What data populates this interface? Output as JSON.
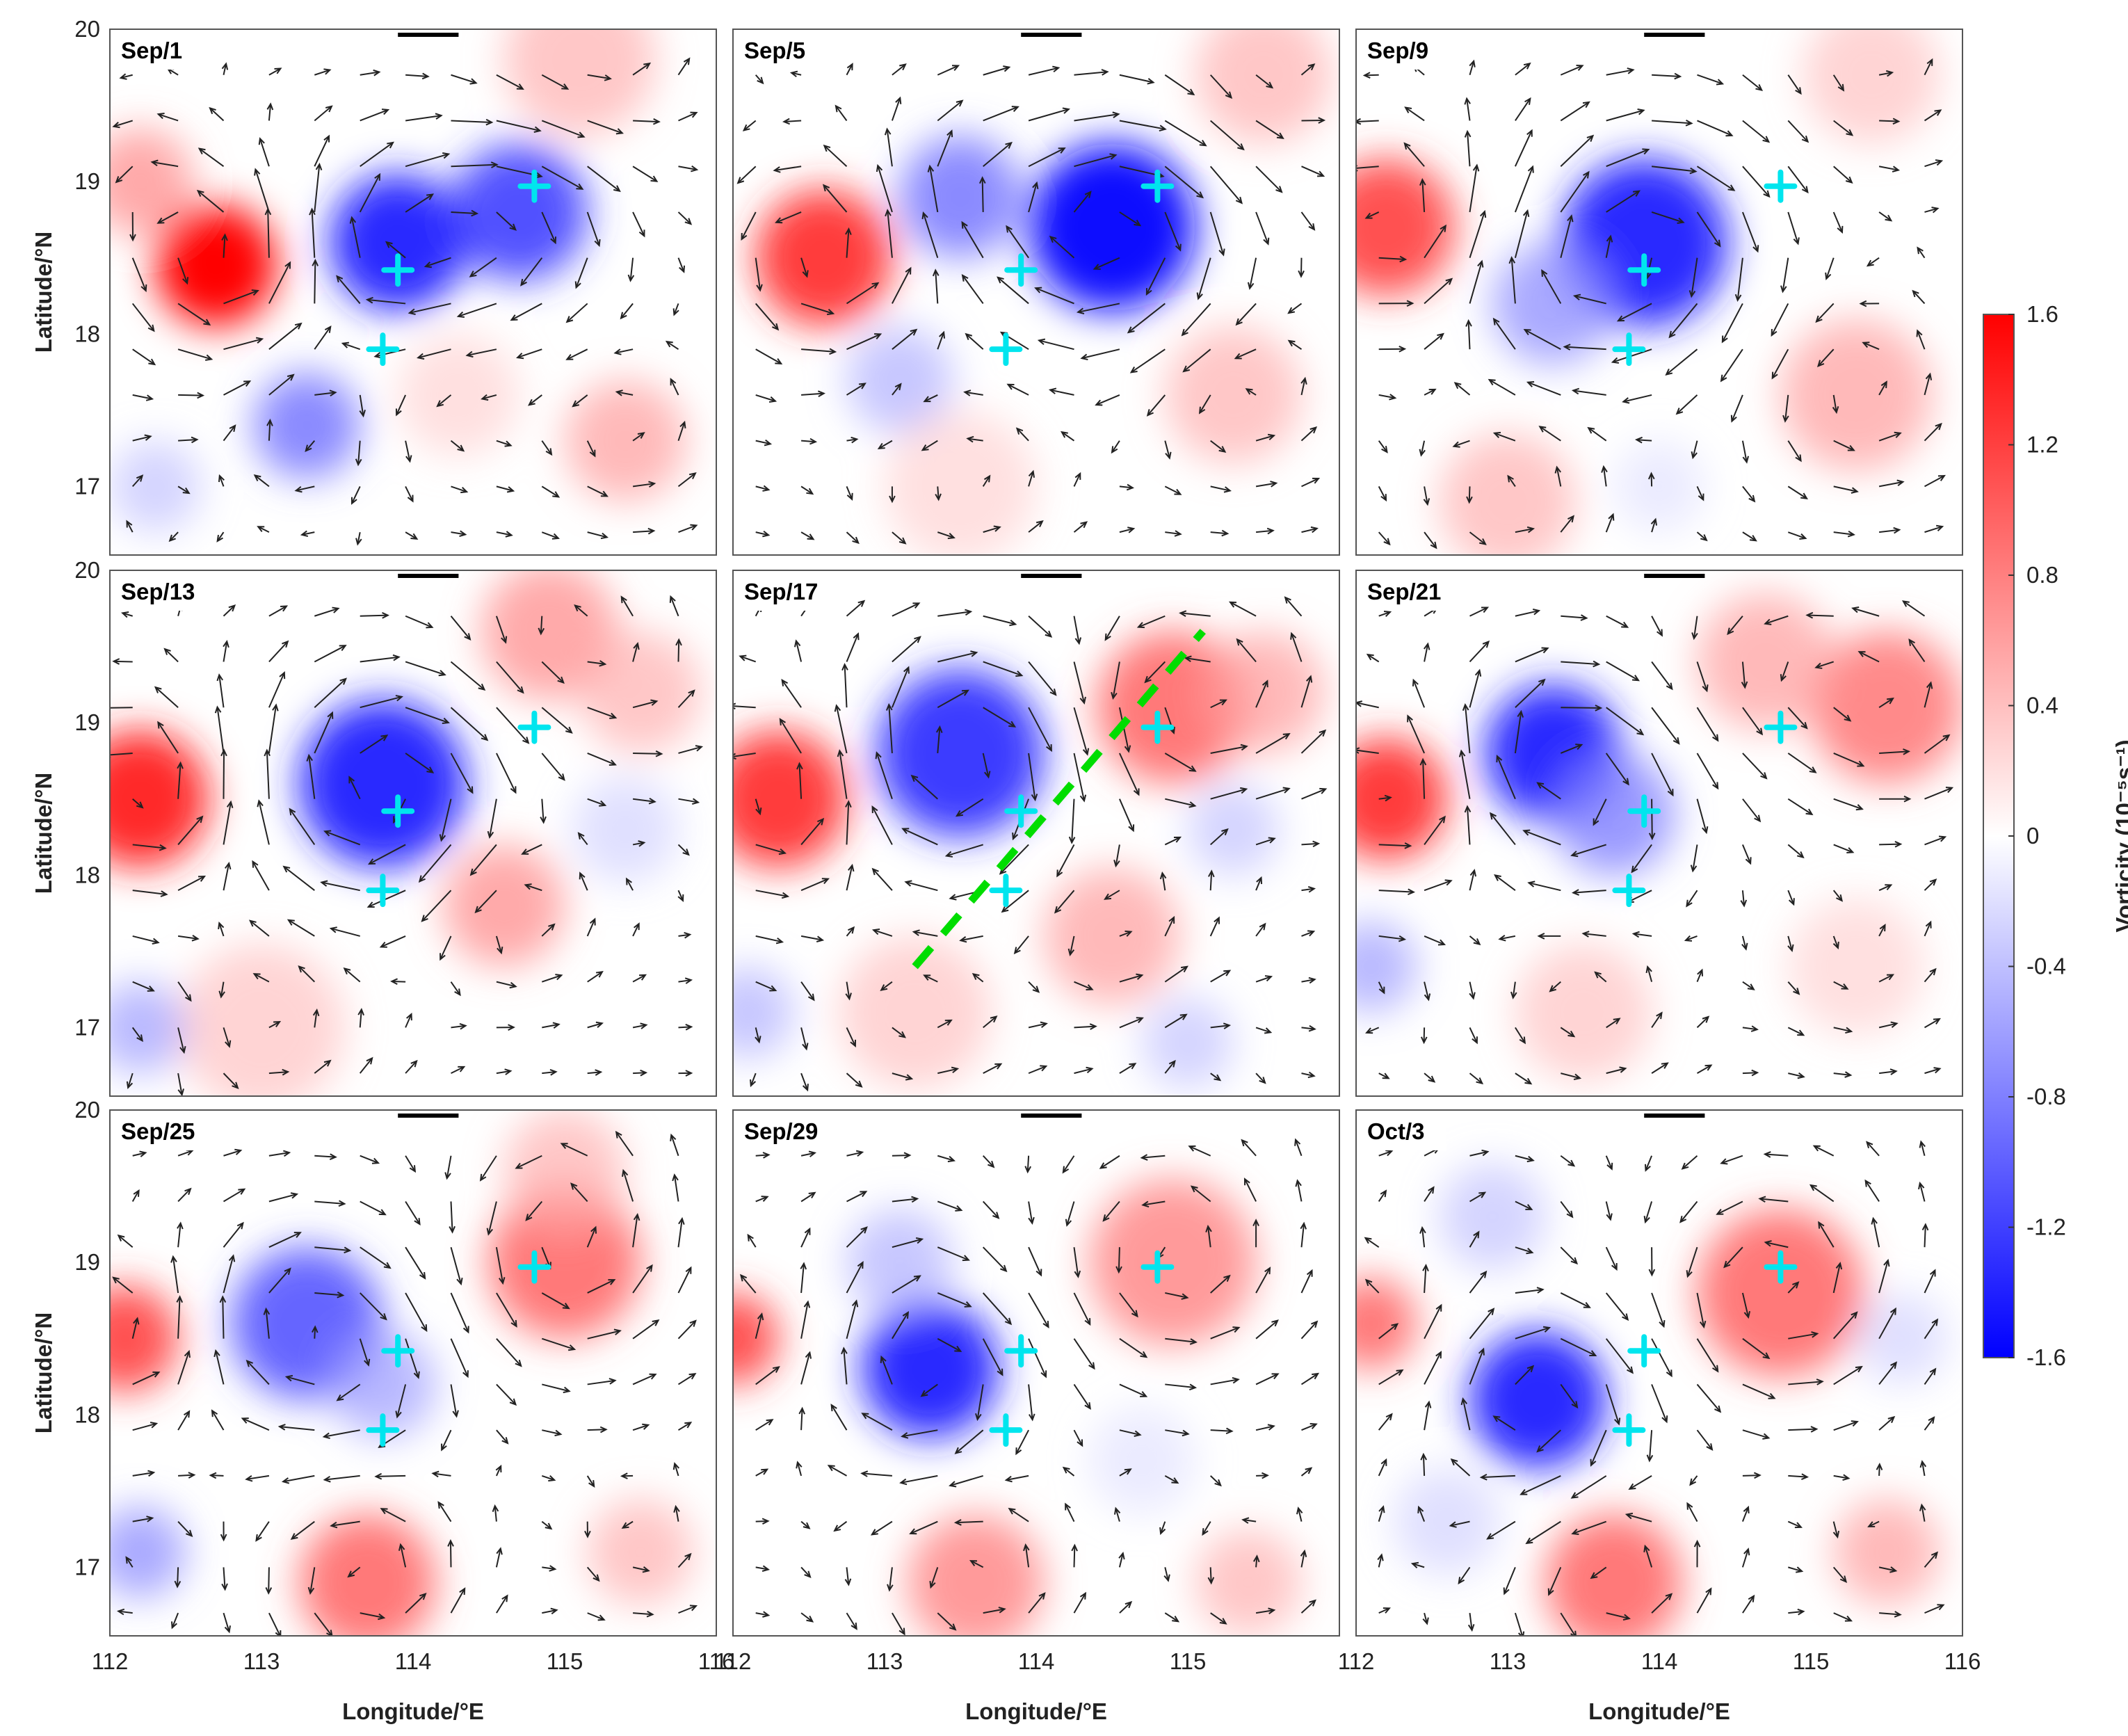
{
  "chart_data": {
    "type": "heatmap",
    "colormap": {
      "negative": "#0000ff",
      "zero": "#ffffff",
      "positive": "#ff0000"
    },
    "xlim": [
      112,
      116
    ],
    "ylim": [
      16.55,
      20
    ],
    "x_ticks": [
      "112",
      "113",
      "114",
      "115",
      "116"
    ],
    "x_ticks_middle": [
      "112",
      "113",
      "114",
      "115"
    ],
    "x_ticks_left": [
      "112",
      "113",
      "114",
      "115",
      "116"
    ],
    "y_ticks": [
      "20",
      "19",
      "18",
      "17"
    ],
    "xlabel": "Longitude/°E",
    "ylabel": "Latitude/°N",
    "colorbar": {
      "label": "Vorticity (10⁻⁵s⁻¹)",
      "range": [
        -1.6,
        1.6
      ],
      "ticks": [
        "1.6",
        "1.2",
        "0.8",
        "0.4",
        "0",
        "-0.4",
        "-0.8",
        "-1.2",
        "-1.6"
      ]
    },
    "marker_color": "#00e5ee",
    "section_line_color": "#00dd00",
    "panels": [
      {
        "label": "Sep/1",
        "features": [
          {
            "lon": 112.7,
            "lat": 18.45,
            "value": 1.6,
            "r": 0.4
          },
          {
            "lon": 112.2,
            "lat": 19.0,
            "value": 0.7,
            "r": 0.35
          },
          {
            "lon": 113.9,
            "lat": 18.6,
            "value": -1.4,
            "r": 0.45
          },
          {
            "lon": 114.7,
            "lat": 18.8,
            "value": -1.2,
            "r": 0.45
          },
          {
            "lon": 113.3,
            "lat": 17.4,
            "value": -0.9,
            "r": 0.35
          },
          {
            "lon": 112.3,
            "lat": 17.0,
            "value": -0.4,
            "r": 0.3
          },
          {
            "lon": 115.4,
            "lat": 17.3,
            "value": 0.6,
            "r": 0.4
          },
          {
            "lon": 115.1,
            "lat": 19.8,
            "value": 0.5,
            "r": 0.5
          },
          {
            "lon": 114.3,
            "lat": 17.6,
            "value": 0.3,
            "r": 0.4
          }
        ],
        "markers": [
          [
            114.8,
            18.97
          ],
          [
            113.9,
            18.42
          ],
          [
            113.8,
            17.9
          ]
        ]
      },
      {
        "label": "Sep/5",
        "features": [
          {
            "lon": 112.6,
            "lat": 18.5,
            "value": 1.3,
            "r": 0.45
          },
          {
            "lon": 114.5,
            "lat": 18.7,
            "value": -1.5,
            "r": 0.55
          },
          {
            "lon": 113.5,
            "lat": 18.9,
            "value": -0.9,
            "r": 0.4
          },
          {
            "lon": 113.1,
            "lat": 17.7,
            "value": -0.5,
            "r": 0.35
          },
          {
            "lon": 115.5,
            "lat": 19.7,
            "value": 0.5,
            "r": 0.45
          },
          {
            "lon": 115.3,
            "lat": 17.6,
            "value": 0.5,
            "r": 0.45
          },
          {
            "lon": 113.5,
            "lat": 17.0,
            "value": 0.3,
            "r": 0.5
          }
        ],
        "markers": [
          [
            114.8,
            18.97
          ],
          [
            113.9,
            18.42
          ],
          [
            113.8,
            17.9
          ]
        ]
      },
      {
        "label": "Sep/9",
        "features": [
          {
            "lon": 112.2,
            "lat": 18.7,
            "value": 1.2,
            "r": 0.45
          },
          {
            "lon": 113.9,
            "lat": 18.6,
            "value": -1.4,
            "r": 0.55
          },
          {
            "lon": 113.3,
            "lat": 18.2,
            "value": -0.7,
            "r": 0.4
          },
          {
            "lon": 115.3,
            "lat": 17.6,
            "value": 0.6,
            "r": 0.5
          },
          {
            "lon": 113.0,
            "lat": 16.9,
            "value": 0.5,
            "r": 0.45
          },
          {
            "lon": 115.4,
            "lat": 19.7,
            "value": 0.4,
            "r": 0.45
          },
          {
            "lon": 114.0,
            "lat": 17.0,
            "value": -0.2,
            "r": 0.3
          }
        ],
        "markers": [
          [
            114.8,
            18.97
          ],
          [
            113.9,
            18.42
          ],
          [
            113.8,
            17.9
          ]
        ]
      },
      {
        "label": "Sep/13",
        "features": [
          {
            "lon": 112.2,
            "lat": 18.5,
            "value": 1.4,
            "r": 0.45
          },
          {
            "lon": 113.8,
            "lat": 18.6,
            "value": -1.4,
            "r": 0.55
          },
          {
            "lon": 114.9,
            "lat": 19.6,
            "value": 0.7,
            "r": 0.45
          },
          {
            "lon": 115.5,
            "lat": 19.2,
            "value": 0.5,
            "r": 0.4
          },
          {
            "lon": 114.6,
            "lat": 17.8,
            "value": 0.7,
            "r": 0.4
          },
          {
            "lon": 113.0,
            "lat": 17.0,
            "value": 0.4,
            "r": 0.55
          },
          {
            "lon": 112.2,
            "lat": 17.0,
            "value": -0.6,
            "r": 0.3
          },
          {
            "lon": 115.4,
            "lat": 18.3,
            "value": -0.3,
            "r": 0.35
          }
        ],
        "markers": [
          [
            114.8,
            18.97
          ],
          [
            113.9,
            18.42
          ],
          [
            113.8,
            17.9
          ]
        ]
      },
      {
        "label": "Sep/17",
        "features": [
          {
            "lon": 112.3,
            "lat": 18.5,
            "value": 1.3,
            "r": 0.45
          },
          {
            "lon": 113.5,
            "lat": 18.8,
            "value": -1.3,
            "r": 0.55
          },
          {
            "lon": 114.9,
            "lat": 19.1,
            "value": 1.0,
            "r": 0.5
          },
          {
            "lon": 115.5,
            "lat": 19.2,
            "value": 0.6,
            "r": 0.4
          },
          {
            "lon": 114.5,
            "lat": 17.6,
            "value": 0.6,
            "r": 0.45
          },
          {
            "lon": 113.2,
            "lat": 17.1,
            "value": 0.4,
            "r": 0.5
          },
          {
            "lon": 115.0,
            "lat": 16.9,
            "value": -0.4,
            "r": 0.3
          },
          {
            "lon": 112.1,
            "lat": 17.1,
            "value": -0.5,
            "r": 0.3
          },
          {
            "lon": 115.3,
            "lat": 18.3,
            "value": -0.4,
            "r": 0.3
          }
        ],
        "markers": [
          [
            114.8,
            18.97
          ],
          [
            113.9,
            18.42
          ],
          [
            113.8,
            17.9
          ]
        ],
        "section_line": [
          [
            113.2,
            17.4
          ],
          [
            115.1,
            19.6
          ]
        ]
      },
      {
        "label": "Sep/21",
        "features": [
          {
            "lon": 112.2,
            "lat": 18.5,
            "value": 1.3,
            "r": 0.4
          },
          {
            "lon": 113.3,
            "lat": 18.8,
            "value": -1.4,
            "r": 0.45
          },
          {
            "lon": 113.7,
            "lat": 18.4,
            "value": -0.8,
            "r": 0.4
          },
          {
            "lon": 115.5,
            "lat": 19.1,
            "value": 0.9,
            "r": 0.5
          },
          {
            "lon": 114.7,
            "lat": 19.4,
            "value": 0.6,
            "r": 0.45
          },
          {
            "lon": 112.1,
            "lat": 17.4,
            "value": -0.6,
            "r": 0.3
          },
          {
            "lon": 113.5,
            "lat": 17.1,
            "value": 0.4,
            "r": 0.45
          },
          {
            "lon": 115.3,
            "lat": 17.4,
            "value": 0.3,
            "r": 0.45
          }
        ],
        "markers": [
          [
            114.8,
            18.97
          ],
          [
            113.9,
            18.42
          ],
          [
            113.8,
            17.9
          ]
        ]
      },
      {
        "label": "Sep/25",
        "features": [
          {
            "lon": 112.1,
            "lat": 18.5,
            "value": 1.2,
            "r": 0.35
          },
          {
            "lon": 113.3,
            "lat": 18.6,
            "value": -1.1,
            "r": 0.5
          },
          {
            "lon": 113.8,
            "lat": 18.2,
            "value": -0.6,
            "r": 0.35
          },
          {
            "lon": 115.0,
            "lat": 19.0,
            "value": 1.0,
            "r": 0.5
          },
          {
            "lon": 115.0,
            "lat": 19.6,
            "value": 0.5,
            "r": 0.4
          },
          {
            "lon": 113.7,
            "lat": 16.9,
            "value": 1.0,
            "r": 0.45
          },
          {
            "lon": 115.5,
            "lat": 17.1,
            "value": 0.5,
            "r": 0.35
          },
          {
            "lon": 112.2,
            "lat": 17.1,
            "value": -0.7,
            "r": 0.3
          }
        ],
        "markers": [
          [
            114.8,
            18.97
          ],
          [
            113.9,
            18.42
          ],
          [
            113.8,
            17.9
          ]
        ]
      },
      {
        "label": "Sep/29",
        "features": [
          {
            "lon": 112.0,
            "lat": 18.5,
            "value": 1.2,
            "r": 0.3
          },
          {
            "lon": 113.3,
            "lat": 18.3,
            "value": -1.4,
            "r": 0.45
          },
          {
            "lon": 113.1,
            "lat": 19.0,
            "value": -0.5,
            "r": 0.35
          },
          {
            "lon": 114.9,
            "lat": 19.0,
            "value": 0.8,
            "r": 0.55
          },
          {
            "lon": 113.6,
            "lat": 16.9,
            "value": 0.8,
            "r": 0.45
          },
          {
            "lon": 115.4,
            "lat": 16.9,
            "value": 0.5,
            "r": 0.35
          },
          {
            "lon": 114.7,
            "lat": 17.7,
            "value": -0.2,
            "r": 0.35
          }
        ],
        "markers": [
          [
            114.8,
            18.97
          ],
          [
            113.9,
            18.42
          ],
          [
            113.8,
            17.9
          ]
        ]
      },
      {
        "label": "Oct/3",
        "features": [
          {
            "lon": 112.1,
            "lat": 18.6,
            "value": 1.0,
            "r": 0.3
          },
          {
            "lon": 113.2,
            "lat": 18.1,
            "value": -1.4,
            "r": 0.45
          },
          {
            "lon": 112.9,
            "lat": 19.3,
            "value": -0.4,
            "r": 0.35
          },
          {
            "lon": 114.8,
            "lat": 18.8,
            "value": 1.0,
            "r": 0.55
          },
          {
            "lon": 115.6,
            "lat": 18.5,
            "value": -0.3,
            "r": 0.3
          },
          {
            "lon": 113.7,
            "lat": 16.9,
            "value": 1.0,
            "r": 0.45
          },
          {
            "lon": 115.5,
            "lat": 17.1,
            "value": 0.6,
            "r": 0.35
          },
          {
            "lon": 112.6,
            "lat": 17.3,
            "value": -0.3,
            "r": 0.35
          }
        ],
        "markers": [
          [
            114.8,
            18.97
          ],
          [
            113.9,
            18.42
          ],
          [
            113.8,
            17.9
          ]
        ]
      }
    ]
  }
}
